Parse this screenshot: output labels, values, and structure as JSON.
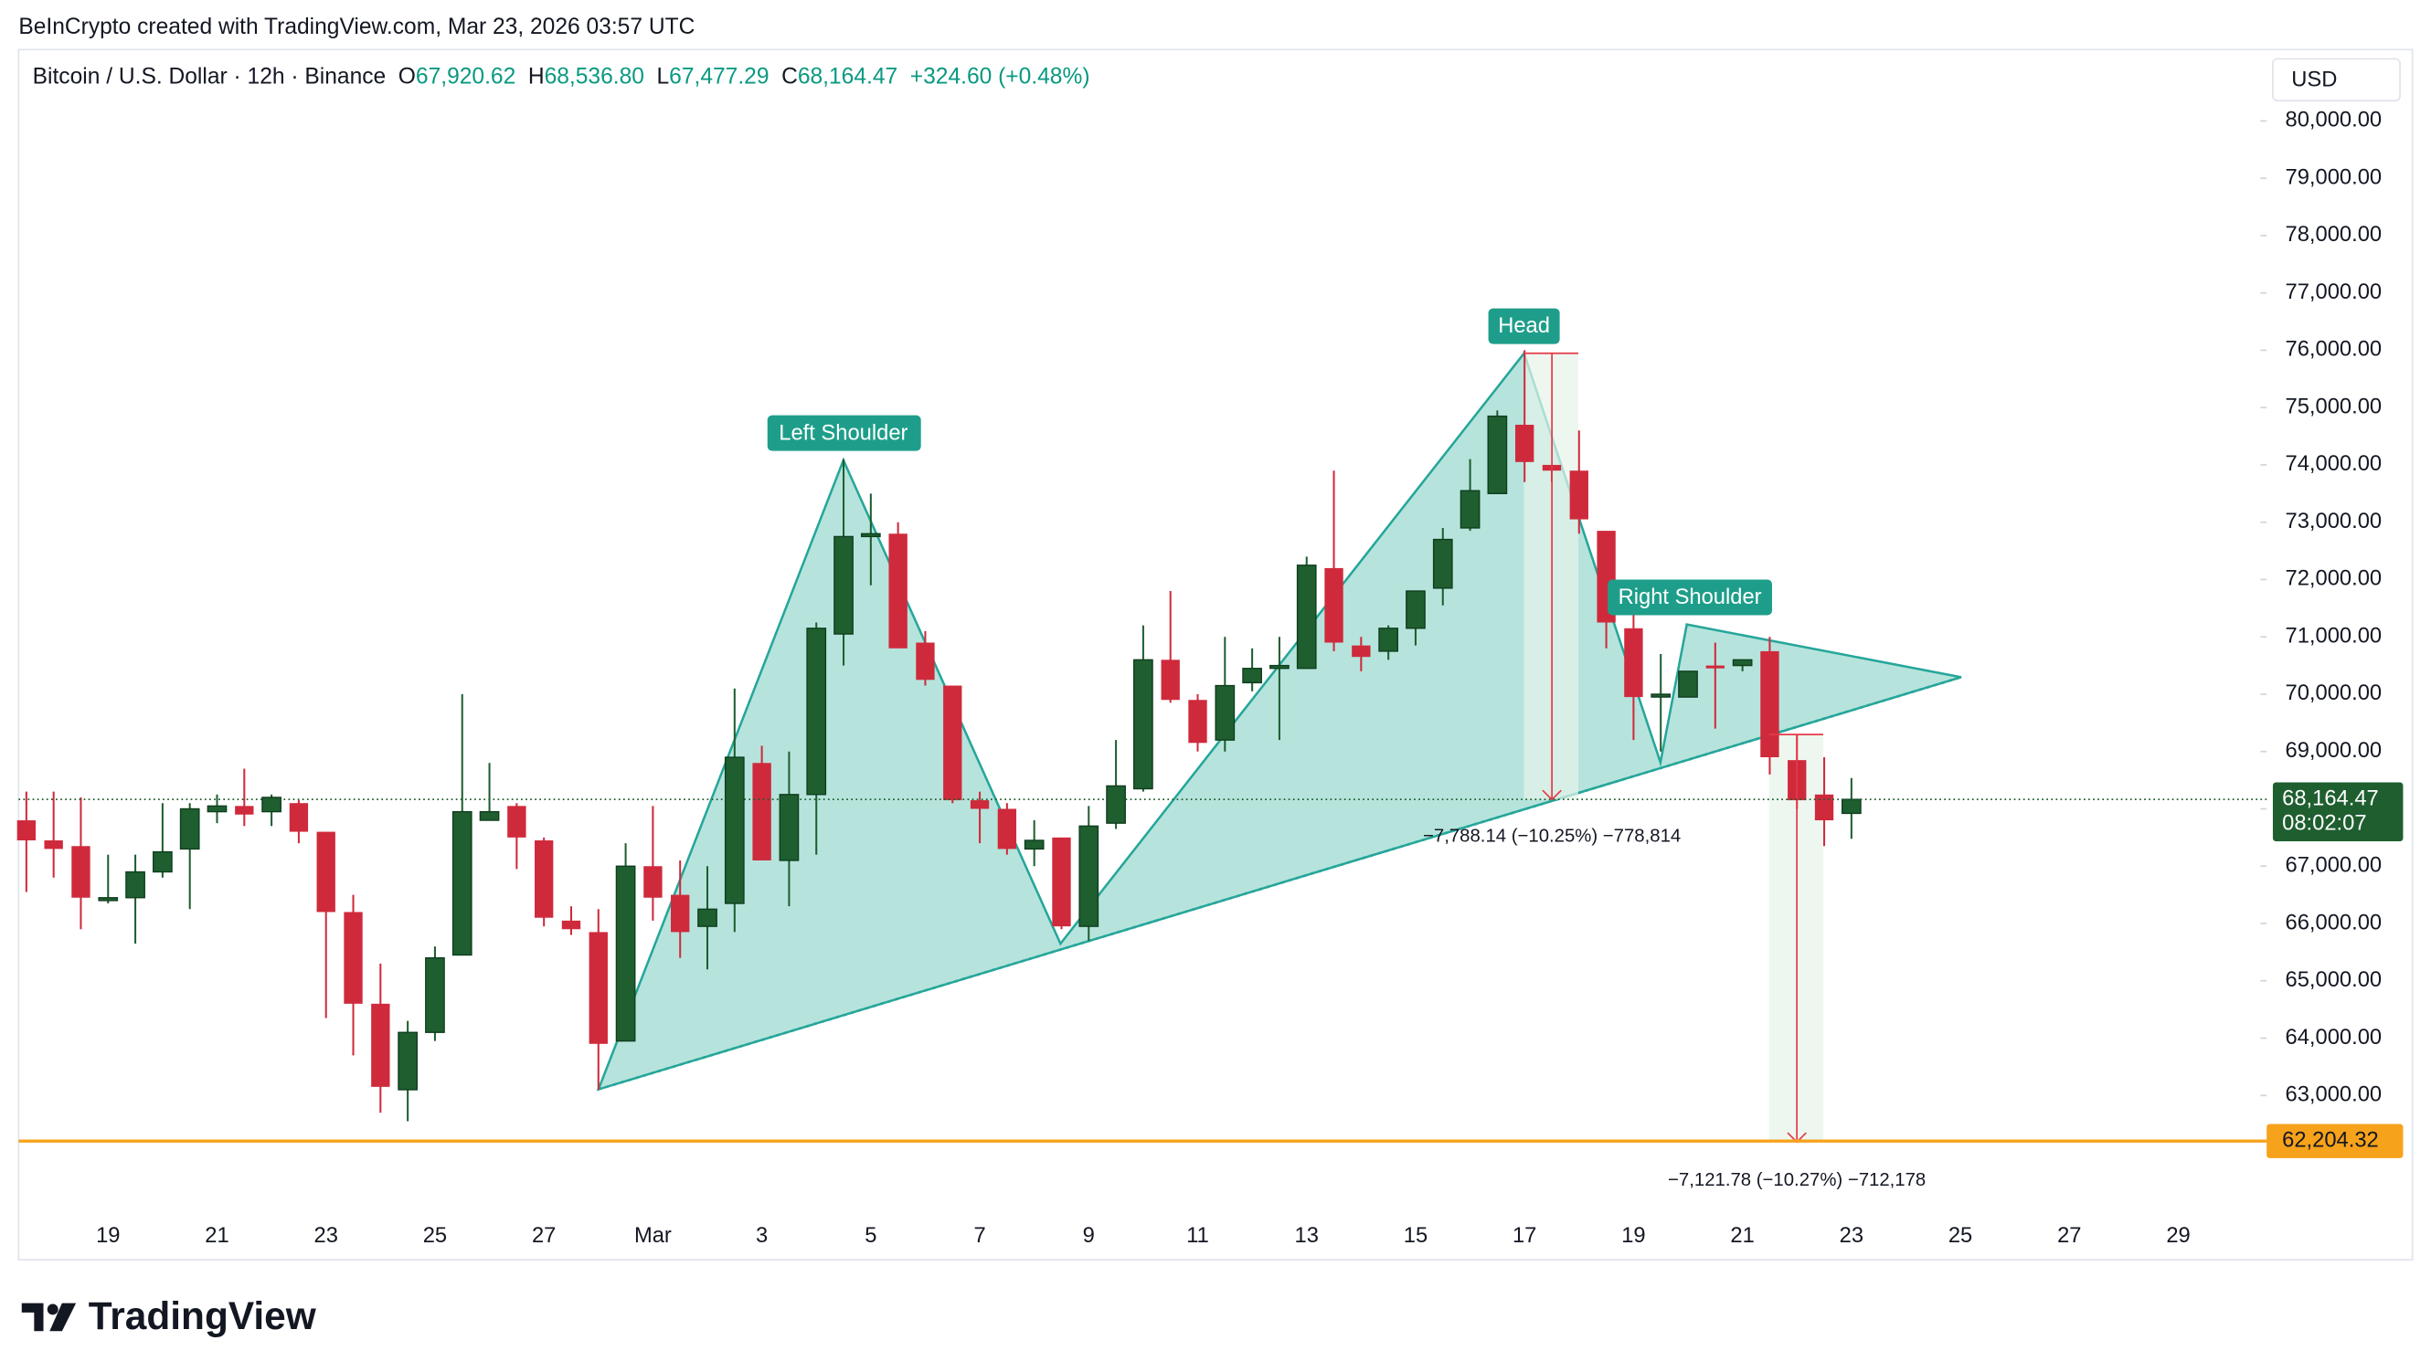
{
  "chart_data": {
    "type": "candlestick",
    "title": "BeInCrypto created with TradingView.com, Mar 23, 2026 03:57 UTC",
    "symbol": "Bitcoin / U.S. Dollar · 12h · Binance",
    "legend": [
      {
        "prefix": "O",
        "label": "67,920.62"
      },
      {
        "prefix": "H",
        "label": "68,536.80"
      },
      {
        "prefix": "L",
        "label": "67,477.29"
      },
      {
        "prefix": "C",
        "label": "68,164.47"
      }
    ],
    "change": "+324.60 (+0.48%)",
    "currency": "USD",
    "brand": "TradingView",
    "up_color": "#1e5e2f",
    "down_color": "#cf2a3c",
    "categories": [
      "19",
      "21",
      "23",
      "25",
      "27",
      "Mar",
      "3",
      "5",
      "7",
      "9",
      "11",
      "13",
      "15",
      "17",
      "19",
      "21",
      "23",
      "25",
      "27",
      "29"
    ],
    "open": [
      67800,
      67450,
      67350,
      66400,
      66450,
      66900,
      67300,
      67950,
      68050,
      67950,
      68100,
      67600,
      66200,
      64600,
      63100,
      64100,
      65450,
      67800,
      68050,
      67450,
      66050,
      65850,
      63950,
      67000,
      66500,
      65950,
      66350,
      68800,
      67100,
      68250,
      71050,
      72750,
      72800,
      70900,
      70150,
      68150,
      68000,
      67300,
      67500,
      65950,
      67750,
      68350,
      70600,
      69900,
      69200,
      70200,
      70450,
      70450,
      72200,
      70850,
      70750,
      71150,
      71850,
      72900,
      73500,
      74700,
      74000,
      73900,
      72850,
      71150,
      69950,
      69950,
      70500,
      70500,
      70750,
      68850,
      68250,
      67920.62
    ],
    "high": [
      68300,
      68300,
      68200,
      67200,
      67200,
      68100,
      68100,
      68250,
      68700,
      68250,
      68150,
      67600,
      66500,
      65300,
      64300,
      65600,
      70000,
      68800,
      68100,
      67500,
      66300,
      66250,
      67400,
      68050,
      67100,
      67000,
      70100,
      69100,
      69000,
      71250,
      74100,
      73500,
      73000,
      71100,
      70150,
      68300,
      68100,
      67800,
      67500,
      68050,
      69200,
      71200,
      71800,
      70000,
      71000,
      70800,
      71000,
      72400,
      73900,
      71000,
      71200,
      71800,
      72900,
      74100,
      74950,
      76000,
      74000,
      74600,
      72850,
      71500,
      70700,
      70400,
      70900,
      70600,
      71000,
      69300,
      68900,
      68536.8
    ],
    "low": [
      66550,
      66800,
      65900,
      66350,
      65650,
      66800,
      66250,
      67750,
      67700,
      67700,
      67400,
      64350,
      63700,
      62700,
      62550,
      63950,
      65450,
      67800,
      66950,
      65950,
      65800,
      63100,
      63950,
      66050,
      65400,
      65200,
      65850,
      67100,
      66300,
      67200,
      70500,
      71900,
      70800,
      70150,
      68100,
      67400,
      67200,
      67000,
      65900,
      65700,
      67650,
      68300,
      69850,
      69000,
      69000,
      70050,
      69200,
      70450,
      70750,
      70400,
      70600,
      70850,
      71550,
      72850,
      73500,
      73700,
      73700,
      72800,
      70800,
      69200,
      69000,
      69950,
      69400,
      70400,
      68600,
      68000,
      67350,
      67477.29
    ],
    "close": [
      67450,
      67300,
      66450,
      66450,
      66900,
      67250,
      68000,
      68050,
      67900,
      68200,
      67600,
      66200,
      64600,
      63150,
      64100,
      65400,
      67950,
      67950,
      67500,
      66100,
      65900,
      63900,
      67000,
      66450,
      65850,
      66250,
      68900,
      67100,
      68250,
      71150,
      72750,
      72800,
      70800,
      70250,
      68150,
      68000,
      67300,
      67450,
      65950,
      67700,
      68400,
      70600,
      69900,
      69150,
      70150,
      70450,
      70500,
      72250,
      70900,
      70650,
      71150,
      71800,
      72700,
      73550,
      74850,
      74050,
      73900,
      73050,
      71250,
      69950,
      70000,
      70400,
      70450,
      70600,
      68900,
      68150,
      67800,
      68164.47
    ],
    "ylim": [
      61025,
      81245
    ],
    "yticks": [
      {
        "value": 63000,
        "label": "63,000.00"
      },
      {
        "value": 64000,
        "label": "64,000.00"
      },
      {
        "value": 65000,
        "label": "65,000.00"
      },
      {
        "value": 66000,
        "label": "66,000.00"
      },
      {
        "value": 67000,
        "label": "67,000.00"
      },
      {
        "value": 68000,
        "label": "68,000.00"
      },
      {
        "value": 69000,
        "label": "69,000.00"
      },
      {
        "value": 70000,
        "label": "70,000.00"
      },
      {
        "value": 71000,
        "label": "71,000.00"
      },
      {
        "value": 72000,
        "label": "72,000.00"
      },
      {
        "value": 73000,
        "label": "73,000.00"
      },
      {
        "value": 74000,
        "label": "74,000.00"
      },
      {
        "value": 75000,
        "label": "75,000.00"
      },
      {
        "value": 76000,
        "label": "76,000.00"
      },
      {
        "value": 77000,
        "label": "77,000.00"
      },
      {
        "value": 78000,
        "label": "78,000.00"
      },
      {
        "value": 79000,
        "label": "79,000.00"
      },
      {
        "value": 80000,
        "label": "80,000.00"
      }
    ],
    "current_price": {
      "value": 68164.47,
      "label": "68,164.47"
    },
    "countdown": "08:02:07",
    "support": {
      "value": 62204.32,
      "label": "62,204.32",
      "color": "#f7a21b"
    },
    "annotations": {
      "left_shoulder": "Left Shoulder",
      "head": "Head",
      "right_shoulder": "Right Shoulder",
      "measure_head": "−7,788.14 (−10.25%) −778,814",
      "measure_target": "−7,121.78 (−10.27%) −712,178"
    }
  }
}
